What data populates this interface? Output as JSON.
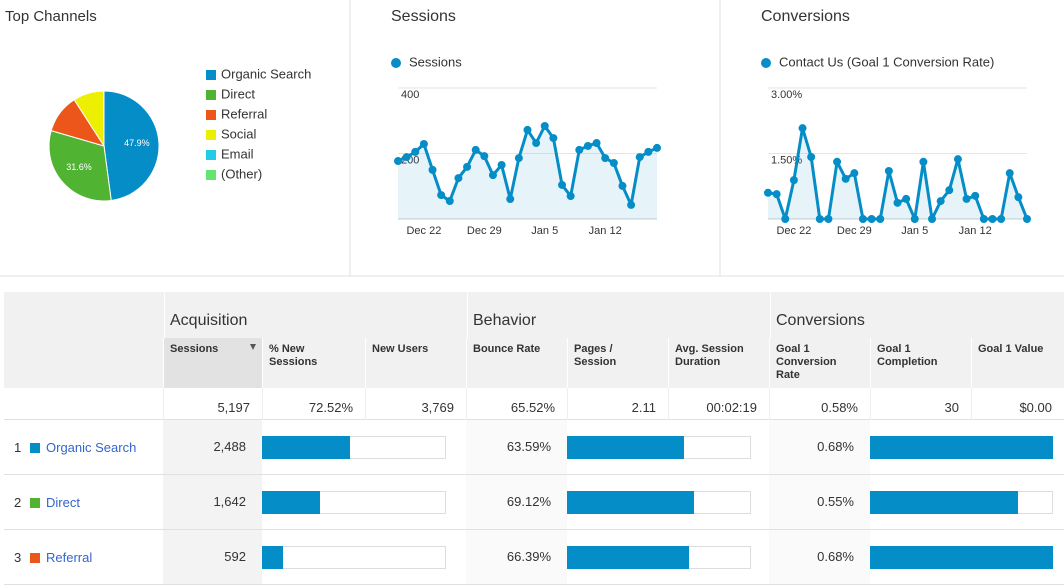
{
  "chart_data": [
    {
      "type": "pie",
      "title": "Top Channels",
      "categories": [
        "Organic Search",
        "Direct",
        "Referral",
        "Social",
        "Email",
        "(Other)"
      ],
      "values": [
        47.9,
        31.6,
        11.4,
        9,
        0.1,
        0
      ],
      "value_labels": [
        "47.9%",
        "31.6%",
        null,
        null,
        null,
        null
      ],
      "colors": [
        "#058dc7",
        "#50b432",
        "#ed561b",
        "#edef00",
        "#24cbe5",
        "#64e572"
      ]
    },
    {
      "type": "line",
      "title": "Sessions",
      "categories": [
        null,
        null,
        null,
        "Dec 22",
        null,
        null,
        null,
        null,
        null,
        null,
        "Dec 29",
        null,
        null,
        null,
        null,
        null,
        null,
        "Jan 5",
        null,
        null,
        null,
        null,
        null,
        null,
        "Jan 12",
        null,
        null,
        null,
        null,
        null,
        null
      ],
      "series": [
        {
          "name": "Sessions",
          "color": "#058dc7",
          "values": [
            177,
            189,
            205,
            229,
            150,
            73,
            55,
            125,
            159,
            211,
            192,
            134,
            165,
            61,
            186,
            272,
            232,
            284,
            247,
            104,
            70,
            211,
            223,
            232,
            186,
            171,
            101,
            43,
            189,
            205,
            217
          ]
        }
      ],
      "ylim": [
        0,
        400
      ],
      "yticks": [
        200,
        400
      ],
      "grid": true
    },
    {
      "type": "line",
      "title": "Conversions",
      "categories": [
        null,
        null,
        null,
        "Dec 22",
        null,
        null,
        null,
        null,
        null,
        null,
        "Dec 29",
        null,
        null,
        null,
        null,
        null,
        null,
        "Jan 5",
        null,
        null,
        null,
        null,
        null,
        null,
        "Jan 12",
        null,
        null,
        null,
        null,
        null,
        null
      ],
      "series": [
        {
          "name": "Contact Us (Goal 1 Conversion Rate)",
          "color": "#058dc7",
          "values": [
            0.6,
            0.57,
            0,
            0.89,
            2.08,
            1.42,
            0,
            0,
            1.31,
            0.92,
            1.05,
            0,
            0,
            0,
            1.1,
            0.37,
            0.46,
            0,
            1.31,
            0,
            0.41,
            0.66,
            1.37,
            0.46,
            0.53,
            0,
            0,
            0,
            1.05,
            0.5,
            0
          ]
        }
      ],
      "ylim": [
        0,
        3
      ],
      "yticks": [
        {
          "value": 1.5,
          "label": "1.50%"
        },
        {
          "value": 3,
          "label": "3.00%"
        }
      ],
      "grid": true
    }
  ],
  "table": {
    "groups": [
      "Acquisition",
      "Behavior",
      "Conversions"
    ],
    "columns": [
      "Sessions",
      "% New Sessions",
      "New Users",
      "Bounce Rate",
      "Pages / Session",
      "Avg. Session Duration",
      "Goal 1 Conversion Rate",
      "Goal 1 Completion",
      "Goal 1 Value"
    ],
    "totals": [
      "5,197",
      "72.52%",
      "3,769",
      "65.52%",
      "2.11",
      "00:02:19",
      "0.58%",
      "30",
      "$0.00"
    ],
    "bar_xlim": {
      "sessions": [
        0,
        5197
      ],
      "bounce_rate": [
        0,
        100
      ],
      "conversion_rate": [
        0,
        0.68
      ]
    },
    "rows": [
      {
        "rank": 1,
        "channel": "Organic Search",
        "sessions": {
          "value": 2488,
          "label": "2,488"
        },
        "bounce_rate": {
          "value": 63.59,
          "label": "63.59%"
        },
        "conversion_rate": {
          "value": 0.68,
          "label": "0.68%"
        }
      },
      {
        "rank": 2,
        "channel": "Direct",
        "sessions": {
          "value": 1642,
          "label": "1,642"
        },
        "bounce_rate": {
          "value": 69.12,
          "label": "69.12%"
        },
        "conversion_rate": {
          "value": 0.55,
          "label": "0.55%"
        }
      },
      {
        "rank": 3,
        "channel": "Referral",
        "sessions": {
          "value": 592,
          "label": "592"
        },
        "bounce_rate": {
          "value": 66.39,
          "label": "66.39%"
        },
        "conversion_rate": {
          "value": 0.68,
          "label": "0.68%"
        }
      }
    ]
  }
}
